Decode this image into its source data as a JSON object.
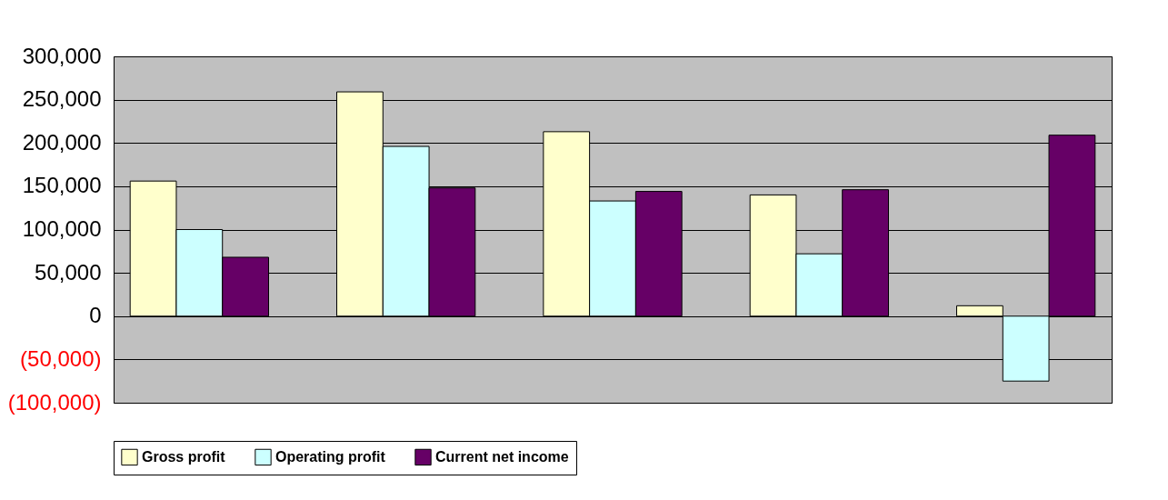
{
  "chart_data": {
    "type": "bar",
    "categories": [
      null,
      null,
      null,
      null,
      null
    ],
    "series": [
      {
        "name": "Gross profit",
        "color": "#ffffcc",
        "values": [
          156000,
          259000,
          213000,
          140000,
          12000
        ]
      },
      {
        "name": "Operating profit",
        "color": "#ccffff",
        "values": [
          100000,
          196000,
          133000,
          72000,
          -75000
        ]
      },
      {
        "name": "Current net income",
        "color": "#660066",
        "values": [
          68000,
          148000,
          144000,
          146000,
          209000
        ]
      }
    ],
    "ylim": [
      -100000,
      300000
    ],
    "yticks": [
      {
        "value": -100000,
        "label": "(100,000)"
      },
      {
        "value": -50000,
        "label": "(50,000)"
      },
      {
        "value": 0,
        "label": "0"
      },
      {
        "value": 50000,
        "label": "50,000"
      },
      {
        "value": 100000,
        "label": "100,000"
      },
      {
        "value": 150000,
        "label": "150,000"
      },
      {
        "value": 200000,
        "label": "200,000"
      },
      {
        "value": 250000,
        "label": "250,000"
      },
      {
        "value": 300000,
        "label": "300,000"
      }
    ],
    "grid": "y",
    "legend": "bottom"
  }
}
